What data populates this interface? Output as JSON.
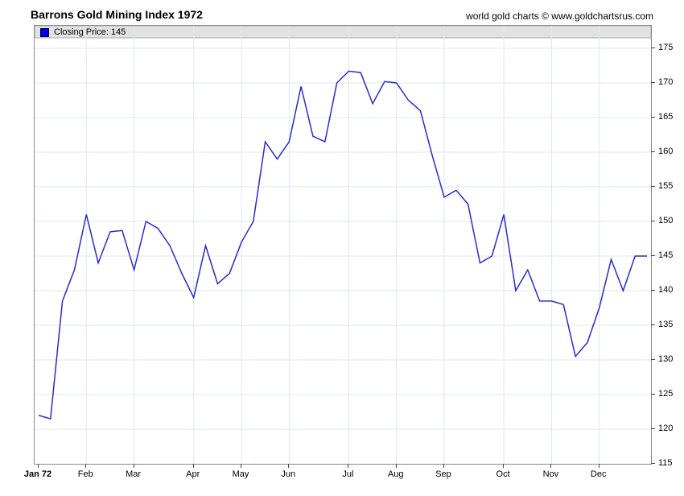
{
  "header": {
    "title": "Barrons Gold Mining Index 1972",
    "watermark": "world gold charts © www.goldchartsrus.com"
  },
  "legend": {
    "label": "Closing Price: 145",
    "swatch_color": "#0000ff"
  },
  "chart_data": {
    "type": "line",
    "title": "Barrons Gold Mining Index 1972",
    "series_name": "Closing Price",
    "last_value": 145,
    "x_unit": "weekly closes, 52 weeks",
    "x_tick_labels": [
      "Jan 72",
      "Feb",
      "Mar",
      "Apr",
      "May",
      "Jun",
      "Jul",
      "Aug",
      "Sep",
      "Oct",
      "Nov",
      "Dec"
    ],
    "x_tick_week_index": [
      0,
      4,
      8,
      13,
      17,
      21,
      26,
      30,
      34,
      39,
      43,
      47
    ],
    "values": [
      122,
      121.5,
      138.5,
      143,
      151,
      144,
      148.5,
      148.7,
      143,
      150,
      149,
      146.5,
      142.5,
      139,
      146.5,
      141,
      142.5,
      147,
      150,
      161.5,
      159,
      161.5,
      169.5,
      162.3,
      161.5,
      170,
      171.7,
      171.5,
      167,
      170.2,
      170,
      167.5,
      166,
      159.5,
      153.5,
      154.5,
      152.5,
      144,
      145,
      151,
      140,
      143,
      138.5,
      138.5,
      138,
      130.5,
      132.5,
      137.5,
      144.5,
      140,
      145,
      145
    ],
    "ylim": [
      115,
      175
    ],
    "y_ticks": [
      115,
      120,
      125,
      130,
      135,
      140,
      145,
      150,
      155,
      160,
      165,
      170,
      175
    ],
    "grid": true,
    "legend_position": "top-left-strip",
    "colors": {
      "line": "#2a2ad2",
      "legend_swatch": "#0000ff",
      "grid": "#dde8f4",
      "axis_border": "#8a8a8a",
      "legend_strip_bg": "#e2e2e2",
      "legend_strip_border": "#aaaaaa",
      "tick": "#444444"
    }
  }
}
